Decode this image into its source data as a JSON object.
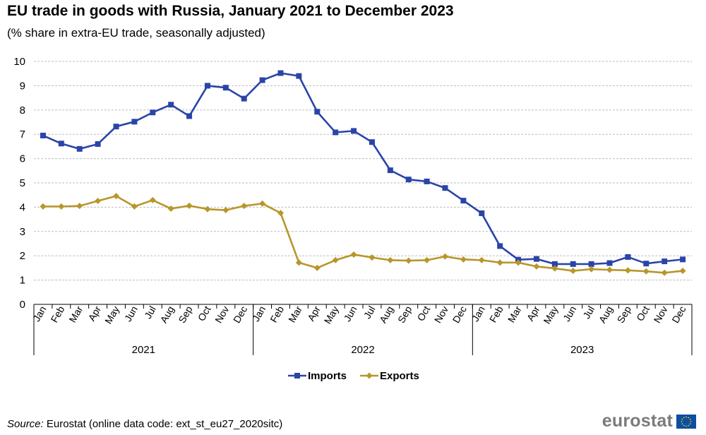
{
  "title": "EU trade in goods with Russia, January 2021 to December 2023",
  "subtitle": "(% share in extra-EU trade, seasonally adjusted)",
  "source_label": "Source:",
  "source_text": " Eurostat (online data code: ext_st_eu27_2020sitc)",
  "logo_text": "eurostat",
  "colors": {
    "imports": "#2a45a8",
    "exports": "#b8962b",
    "grid": "#bdbdbd",
    "axis": "#000000",
    "flag_bg": "#0b4ea2",
    "flag_stars": "#ffcc00"
  },
  "chart_data": {
    "type": "line",
    "title": "EU trade in goods with Russia, January 2021 to December 2023",
    "subtitle": "(% share in extra-EU trade, seasonally adjusted)",
    "ylim": [
      0,
      10
    ],
    "yticks": [
      0,
      1,
      2,
      3,
      4,
      5,
      6,
      7,
      8,
      9,
      10
    ],
    "grid": true,
    "legend": "bottom-center",
    "months": [
      "Jan",
      "Feb",
      "Mar",
      "Apr",
      "May",
      "Jun",
      "Jul",
      "Aug",
      "Sep",
      "Oct",
      "Nov",
      "Dec",
      "Jan",
      "Feb",
      "Mar",
      "Apr",
      "May",
      "Jun",
      "Jul",
      "Aug",
      "Sep",
      "Oct",
      "Nov",
      "Dec",
      "Jan",
      "Feb",
      "Mar",
      "Apr",
      "May",
      "Jun",
      "Jul",
      "Aug",
      "Sep",
      "Oct",
      "Nov",
      "Dec"
    ],
    "years": [
      "2021",
      "2022",
      "2023"
    ],
    "series": [
      {
        "name": "Imports",
        "marker": "square",
        "values": [
          6.95,
          6.62,
          6.4,
          6.6,
          7.32,
          7.52,
          7.9,
          8.22,
          7.75,
          9.0,
          8.92,
          8.47,
          9.23,
          9.52,
          9.4,
          7.93,
          7.08,
          7.14,
          6.68,
          5.52,
          5.14,
          5.06,
          4.79,
          4.27,
          3.75,
          2.4,
          1.84,
          1.87,
          1.66,
          1.66,
          1.66,
          1.7,
          1.95,
          1.68,
          1.77,
          1.85
        ]
      },
      {
        "name": "Exports",
        "marker": "diamond",
        "values": [
          4.03,
          4.03,
          4.05,
          4.26,
          4.46,
          4.03,
          4.29,
          3.94,
          4.06,
          3.92,
          3.88,
          4.05,
          4.15,
          3.76,
          1.72,
          1.5,
          1.82,
          2.05,
          1.93,
          1.82,
          1.8,
          1.82,
          1.97,
          1.85,
          1.82,
          1.72,
          1.72,
          1.56,
          1.48,
          1.38,
          1.45,
          1.42,
          1.4,
          1.36,
          1.3,
          1.38
        ]
      }
    ]
  }
}
